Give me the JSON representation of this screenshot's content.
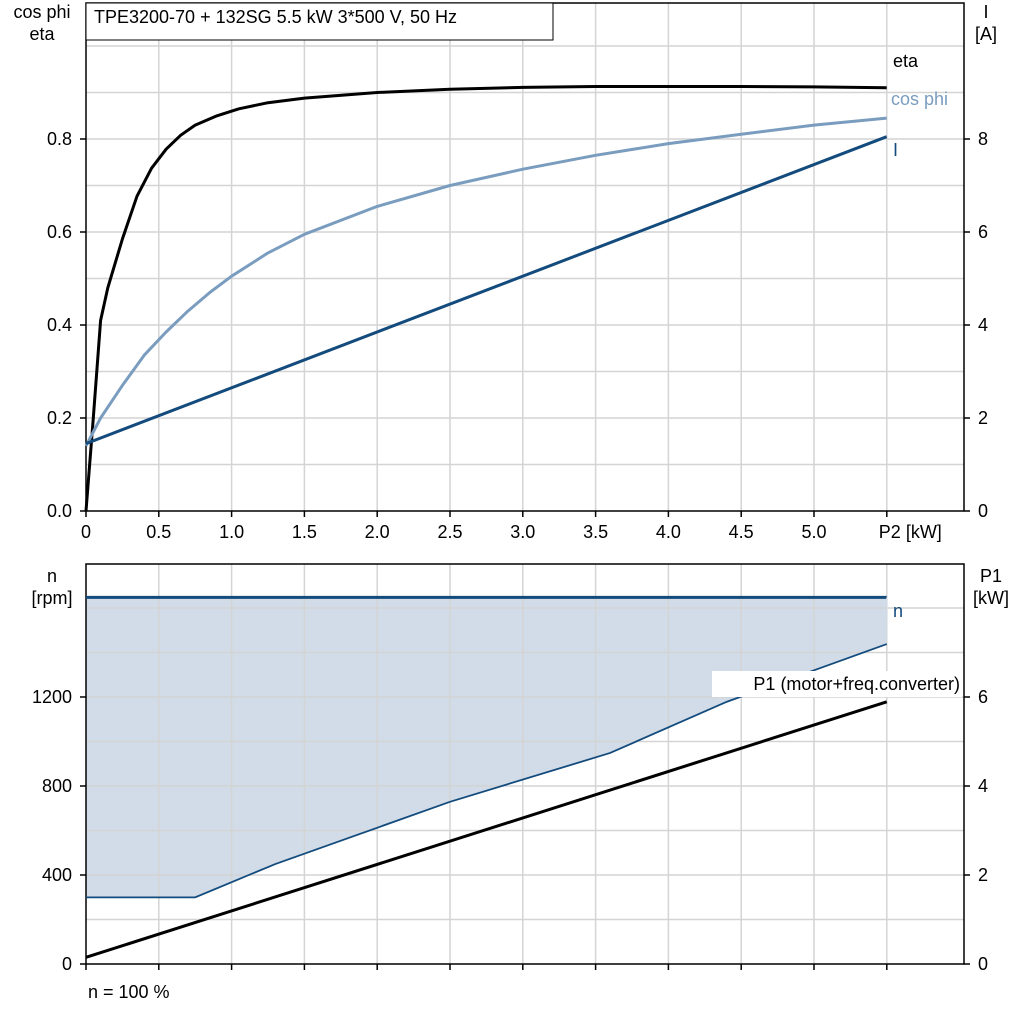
{
  "title": "TPE3200-70 + 132SG   5.5 kW   3*500 V, 50 Hz",
  "footer": "n = 100 %",
  "colors": {
    "eta": "#000000",
    "cos_phi": "#7a9dbf",
    "I": "#134b7d",
    "n": "#134b7d",
    "n_fill": "#d1dce8",
    "P1": "#000000",
    "grid": "#d4d4d4"
  },
  "chart_data": [
    {
      "type": "line",
      "xlabel": "P2 [kW]",
      "xlim": [
        0,
        6
      ],
      "x_ticks": [
        "0",
        "0.5",
        "1.0",
        "1.5",
        "2.0",
        "2.5",
        "3.0",
        "3.5",
        "4.0",
        "4.5",
        "5.0",
        "P2 [kW]"
      ],
      "y_left_label": [
        "cos phi",
        "eta"
      ],
      "y_left_ticks": [
        "0.0",
        "0.2",
        "0.4",
        "0.6",
        "0.8"
      ],
      "y_left_lim": [
        0,
        1.0
      ],
      "y_right_label": [
        "I",
        "[A]"
      ],
      "y_right_ticks": [
        "0",
        "2",
        "4",
        "6",
        "8"
      ],
      "y_right_lim": [
        0,
        10.0
      ],
      "grid": true,
      "series": [
        {
          "name": "eta",
          "axis": "left",
          "x": [
            0,
            0.05,
            0.1,
            0.15,
            0.25,
            0.35,
            0.45,
            0.55,
            0.65,
            0.75,
            0.9,
            1.05,
            1.25,
            1.5,
            2.0,
            2.5,
            3.0,
            3.5,
            4.0,
            4.5,
            5.0,
            5.5
          ],
          "y": [
            0.0,
            0.2,
            0.41,
            0.48,
            0.585,
            0.677,
            0.737,
            0.778,
            0.808,
            0.83,
            0.85,
            0.865,
            0.878,
            0.888,
            0.9,
            0.907,
            0.911,
            0.913,
            0.913,
            0.913,
            0.912,
            0.91
          ]
        },
        {
          "name": "cos phi",
          "axis": "left",
          "x": [
            0,
            0.1,
            0.25,
            0.4,
            0.55,
            0.7,
            0.85,
            1.0,
            1.25,
            1.5,
            2.0,
            2.5,
            3.0,
            3.5,
            4.0,
            4.5,
            5.0,
            5.5
          ],
          "y": [
            0.14,
            0.2,
            0.27,
            0.335,
            0.385,
            0.43,
            0.47,
            0.505,
            0.555,
            0.595,
            0.655,
            0.7,
            0.735,
            0.765,
            0.79,
            0.81,
            0.83,
            0.845
          ]
        },
        {
          "name": "I",
          "axis": "right",
          "x": [
            0,
            5.5
          ],
          "y": [
            1.45,
            8.05
          ]
        }
      ]
    },
    {
      "type": "line",
      "xlim": [
        0,
        6
      ],
      "y_left_label": [
        "n",
        "[rpm]"
      ],
      "y_left_ticks": [
        "0",
        "400",
        "800",
        "1200"
      ],
      "y_left_lim": [
        0,
        1800
      ],
      "y_right_label": [
        "P1",
        "[kW]"
      ],
      "y_right_ticks": [
        "0",
        "2",
        "4",
        "6"
      ],
      "y_right_lim": [
        0,
        9.0
      ],
      "grid": true,
      "series": [
        {
          "name": "n",
          "axis": "left",
          "x": [
            0,
            5.5
          ],
          "y": [
            1650,
            1650
          ]
        },
        {
          "name": "n_min",
          "axis": "left",
          "x": [
            0,
            0.75,
            1.3,
            2.5,
            3.6,
            4.4,
            5.5
          ],
          "y": [
            300,
            300,
            450,
            730,
            950,
            1180,
            1440
          ]
        },
        {
          "name": "P1 (motor+freq.converter)",
          "axis": "right",
          "x": [
            0,
            5.5
          ],
          "y": [
            0.15,
            5.9
          ]
        }
      ]
    }
  ]
}
